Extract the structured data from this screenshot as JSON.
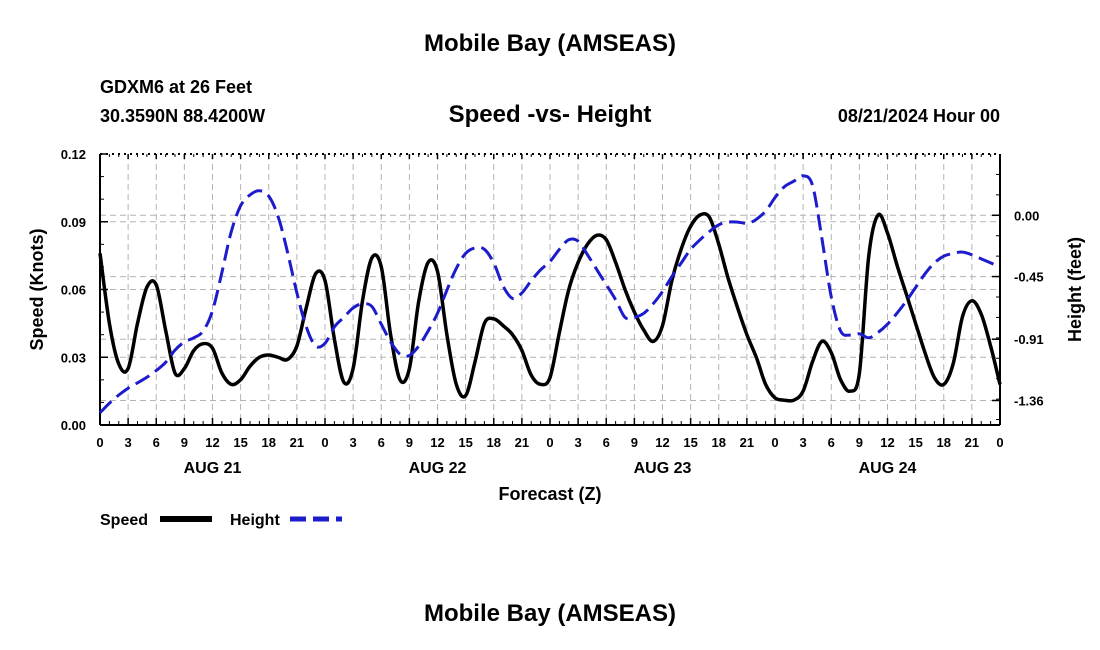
{
  "page": {
    "title": "Mobile Bay (AMSEAS)",
    "bottom_title": "Mobile Bay (AMSEAS)",
    "station": "GDXM6 at 26 Feet",
    "coords": "30.3590N  88.4200W",
    "datetime": "08/21/2024 Hour 00"
  },
  "chart_data": {
    "type": "line",
    "title": "Speed -vs- Height",
    "xlabel": "Forecast (Z)",
    "ylabel_left": "Speed (Knots)",
    "ylabel_right": "Height (feet)",
    "x_hours_range": [
      0,
      96
    ],
    "x_tick_labels": [
      "0",
      "3",
      "6",
      "9",
      "12",
      "15",
      "18",
      "21",
      "0",
      "3",
      "6",
      "9",
      "12",
      "15",
      "18",
      "21",
      "0",
      "3",
      "6",
      "9",
      "12",
      "15",
      "18",
      "21",
      "0",
      "3",
      "6",
      "9",
      "12",
      "15",
      "18",
      "21",
      "0"
    ],
    "date_labels": [
      {
        "label": "AUG 21",
        "hour": 12
      },
      {
        "label": "AUG 22",
        "hour": 36
      },
      {
        "label": "AUG 23",
        "hour": 60
      },
      {
        "label": "AUG 24",
        "hour": 84
      }
    ],
    "left_axis": {
      "ylim": [
        0,
        0.12
      ],
      "ticks": [
        "0.00",
        "0.03",
        "0.06",
        "0.09",
        "0.12"
      ]
    },
    "right_axis": {
      "ylim": [
        -1.54,
        0.45
      ],
      "ticks": [
        {
          "label": "0.00",
          "value": 0.0
        },
        {
          "label": "-0.45",
          "value": -0.45
        },
        {
          "label": "-0.91",
          "value": -0.91
        },
        {
          "label": "-1.36",
          "value": -1.36
        }
      ]
    },
    "grid": true,
    "legend_placement": "bottom-left",
    "series": [
      {
        "name": "Speed",
        "axis": "left",
        "color": "#000000",
        "style": "solid",
        "x": [
          0,
          1,
          2,
          3,
          4,
          5,
          6,
          7,
          8,
          9,
          10,
          11,
          12,
          13,
          14,
          15,
          16,
          17,
          18,
          19,
          20,
          21,
          22,
          23,
          24,
          25,
          26,
          27,
          28,
          29,
          30,
          31,
          32,
          33,
          34,
          35,
          36,
          37,
          38,
          39,
          40,
          41,
          42,
          43,
          44,
          45,
          46,
          47,
          48,
          49,
          50,
          51,
          52,
          53,
          54,
          55,
          56,
          57,
          58,
          59,
          60,
          61,
          62,
          63,
          64,
          65,
          66,
          67,
          68,
          69,
          70,
          71,
          72,
          73,
          74,
          75,
          76,
          77,
          78,
          79,
          80,
          81,
          82,
          83,
          84,
          85,
          86,
          87,
          88,
          89,
          90,
          91,
          92,
          93,
          94,
          95,
          96
        ],
        "values": [
          0.076,
          0.045,
          0.027,
          0.025,
          0.045,
          0.061,
          0.062,
          0.042,
          0.023,
          0.025,
          0.033,
          0.036,
          0.034,
          0.023,
          0.018,
          0.02,
          0.026,
          0.03,
          0.031,
          0.03,
          0.029,
          0.035,
          0.052,
          0.067,
          0.064,
          0.038,
          0.019,
          0.025,
          0.055,
          0.074,
          0.07,
          0.04,
          0.02,
          0.025,
          0.055,
          0.072,
          0.068,
          0.04,
          0.018,
          0.013,
          0.028,
          0.045,
          0.047,
          0.044,
          0.04,
          0.033,
          0.022,
          0.018,
          0.021,
          0.041,
          0.06,
          0.072,
          0.08,
          0.084,
          0.082,
          0.072,
          0.06,
          0.05,
          0.042,
          0.037,
          0.044,
          0.064,
          0.078,
          0.088,
          0.093,
          0.092,
          0.08,
          0.065,
          0.052,
          0.04,
          0.03,
          0.018,
          0.012,
          0.011,
          0.011,
          0.015,
          0.028,
          0.037,
          0.032,
          0.02,
          0.015,
          0.023,
          0.075,
          0.093,
          0.085,
          0.071,
          0.058,
          0.045,
          0.032,
          0.021,
          0.018,
          0.027,
          0.048,
          0.055,
          0.049,
          0.035,
          0.018
        ]
      },
      {
        "name": "Height",
        "axis": "right",
        "color": "#1c1ccc",
        "style": "dashed",
        "x": [
          0,
          1,
          2,
          3,
          4,
          5,
          6,
          7,
          8,
          9,
          10,
          11,
          12,
          13,
          14,
          15,
          16,
          17,
          18,
          19,
          20,
          21,
          22,
          23,
          24,
          25,
          26,
          27,
          28,
          29,
          30,
          31,
          32,
          33,
          34,
          35,
          36,
          37,
          38,
          39,
          40,
          41,
          42,
          43,
          44,
          45,
          46,
          47,
          48,
          49,
          50,
          51,
          52,
          53,
          54,
          55,
          56,
          57,
          58,
          59,
          60,
          61,
          62,
          63,
          64,
          65,
          66,
          67,
          68,
          69,
          69.5,
          70,
          71,
          72,
          73,
          74,
          75,
          76,
          77,
          78,
          79,
          80,
          81,
          82,
          83,
          84,
          85,
          86,
          87,
          88,
          89,
          90,
          91,
          92,
          93,
          94,
          95,
          96
        ],
        "values": [
          -1.45,
          -1.38,
          -1.32,
          -1.27,
          -1.23,
          -1.19,
          -1.14,
          -1.08,
          -0.99,
          -0.93,
          -0.9,
          -0.85,
          -0.7,
          -0.42,
          -0.12,
          0.07,
          0.15,
          0.18,
          0.14,
          -0.01,
          -0.27,
          -0.57,
          -0.82,
          -0.96,
          -0.94,
          -0.82,
          -0.75,
          -0.68,
          -0.65,
          -0.67,
          -0.8,
          -0.93,
          -1.02,
          -1.03,
          -0.96,
          -0.85,
          -0.72,
          -0.55,
          -0.39,
          -0.28,
          -0.24,
          -0.25,
          -0.35,
          -0.52,
          -0.61,
          -0.57,
          -0.48,
          -0.4,
          -0.34,
          -0.25,
          -0.18,
          -0.19,
          -0.29,
          -0.4,
          -0.51,
          -0.62,
          -0.75,
          -0.75,
          -0.72,
          -0.65,
          -0.56,
          -0.45,
          -0.35,
          -0.25,
          -0.18,
          -0.12,
          -0.07,
          -0.05,
          -0.05,
          -0.06,
          -0.05,
          -0.03,
          0.03,
          0.13,
          0.21,
          0.25,
          0.29,
          0.22,
          -0.17,
          -0.6,
          -0.85,
          -0.88,
          -0.87,
          -0.9,
          -0.86,
          -0.8,
          -0.72,
          -0.63,
          -0.53,
          -0.43,
          -0.35,
          -0.3,
          -0.28,
          -0.27,
          -0.29,
          -0.32,
          -0.35,
          -0.38
        ]
      }
    ]
  }
}
